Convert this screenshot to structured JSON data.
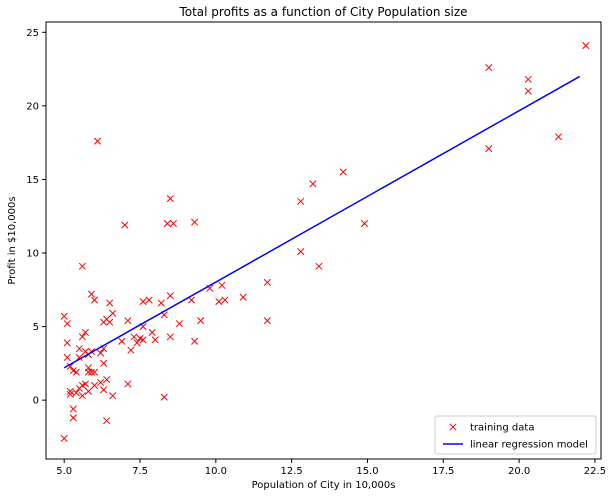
{
  "chart_data": {
    "type": "scatter",
    "title": "Total profits as a function of City Population size",
    "xlabel": "Population of City in 10,000s",
    "ylabel": "Profit in $10,000s",
    "xlim": [
      4.4,
      22.7
    ],
    "ylim": [
      -4.0,
      25.7
    ],
    "xticks": [
      5.0,
      7.5,
      10.0,
      12.5,
      15.0,
      17.5,
      20.0,
      22.5
    ],
    "xtick_labels": [
      "5.0",
      "7.5",
      "10.0",
      "12.5",
      "15.0",
      "17.5",
      "20.0",
      "22.5"
    ],
    "yticks": [
      0,
      5,
      10,
      15,
      20,
      25
    ],
    "ytick_labels": [
      "0",
      "5",
      "10",
      "15",
      "20",
      "25"
    ],
    "grid": false,
    "legend_position": "lower-right",
    "series": [
      {
        "name": "training data",
        "kind": "scatter",
        "marker": "x",
        "color": "#ff0000",
        "points": [
          [
            5.0,
            -2.6
          ],
          [
            5.0,
            5.7
          ],
          [
            5.1,
            5.2
          ],
          [
            5.1,
            3.9
          ],
          [
            5.1,
            2.9
          ],
          [
            5.2,
            0.6
          ],
          [
            5.2,
            2.3
          ],
          [
            5.2,
            0.4
          ],
          [
            5.3,
            -0.6
          ],
          [
            5.3,
            -1.2
          ],
          [
            5.3,
            2.0
          ],
          [
            5.4,
            1.9
          ],
          [
            5.4,
            0.5
          ],
          [
            5.5,
            3.5
          ],
          [
            5.5,
            0.8
          ],
          [
            5.5,
            2.9
          ],
          [
            5.6,
            9.1
          ],
          [
            5.6,
            1.0
          ],
          [
            5.6,
            0.3
          ],
          [
            5.6,
            4.3
          ],
          [
            5.7,
            3.3
          ],
          [
            5.7,
            4.6
          ],
          [
            5.7,
            1.1
          ],
          [
            5.8,
            3.1
          ],
          [
            5.8,
            0.6
          ],
          [
            5.8,
            1.9
          ],
          [
            5.8,
            2.2
          ],
          [
            5.9,
            3.3
          ],
          [
            5.9,
            1.9
          ],
          [
            5.9,
            7.2
          ],
          [
            6.0,
            6.8
          ],
          [
            6.0,
            1.9
          ],
          [
            6.0,
            1.0
          ],
          [
            6.1,
            17.6
          ],
          [
            6.2,
            3.2
          ],
          [
            6.2,
            1.2
          ],
          [
            6.3,
            2.5
          ],
          [
            6.3,
            5.3
          ],
          [
            6.3,
            0.7
          ],
          [
            6.3,
            3.5
          ],
          [
            6.4,
            5.5
          ],
          [
            6.4,
            1.4
          ],
          [
            6.4,
            -1.4
          ],
          [
            6.5,
            6.6
          ],
          [
            6.5,
            5.3
          ],
          [
            6.6,
            0.3
          ],
          [
            6.6,
            5.9
          ],
          [
            6.9,
            4.0
          ],
          [
            7.0,
            11.9
          ],
          [
            7.1,
            5.4
          ],
          [
            7.1,
            1.1
          ],
          [
            7.2,
            3.4
          ],
          [
            7.3,
            4.3
          ],
          [
            7.4,
            3.9
          ],
          [
            7.5,
            4.2
          ],
          [
            7.6,
            6.7
          ],
          [
            7.6,
            5.0
          ],
          [
            7.6,
            4.1
          ],
          [
            7.8,
            6.8
          ],
          [
            7.9,
            4.6
          ],
          [
            8.0,
            4.1
          ],
          [
            8.2,
            6.6
          ],
          [
            8.3,
            5.8
          ],
          [
            8.3,
            0.2
          ],
          [
            8.4,
            12.0
          ],
          [
            8.5,
            7.1
          ],
          [
            8.5,
            4.3
          ],
          [
            8.5,
            13.7
          ],
          [
            8.6,
            12.0
          ],
          [
            8.8,
            5.2
          ],
          [
            9.2,
            6.8
          ],
          [
            9.3,
            12.1
          ],
          [
            9.3,
            4.0
          ],
          [
            9.5,
            5.4
          ],
          [
            9.8,
            7.6
          ],
          [
            10.1,
            6.7
          ],
          [
            10.2,
            7.8
          ],
          [
            10.3,
            6.8
          ],
          [
            10.9,
            7.0
          ],
          [
            11.7,
            8.0
          ],
          [
            11.7,
            5.4
          ],
          [
            12.8,
            10.1
          ],
          [
            12.8,
            13.5
          ],
          [
            13.2,
            14.7
          ],
          [
            13.4,
            9.1
          ],
          [
            14.2,
            15.5
          ],
          [
            14.9,
            12.0
          ],
          [
            19.0,
            22.6
          ],
          [
            19.0,
            17.1
          ],
          [
            20.3,
            21.8
          ],
          [
            20.3,
            21.0
          ],
          [
            21.3,
            17.9
          ],
          [
            22.2,
            24.1
          ]
        ]
      },
      {
        "name": "linear regression model",
        "kind": "line",
        "color": "#0000ff",
        "points": [
          [
            5.0,
            2.2
          ],
          [
            22.0,
            22.0
          ]
        ]
      }
    ]
  }
}
